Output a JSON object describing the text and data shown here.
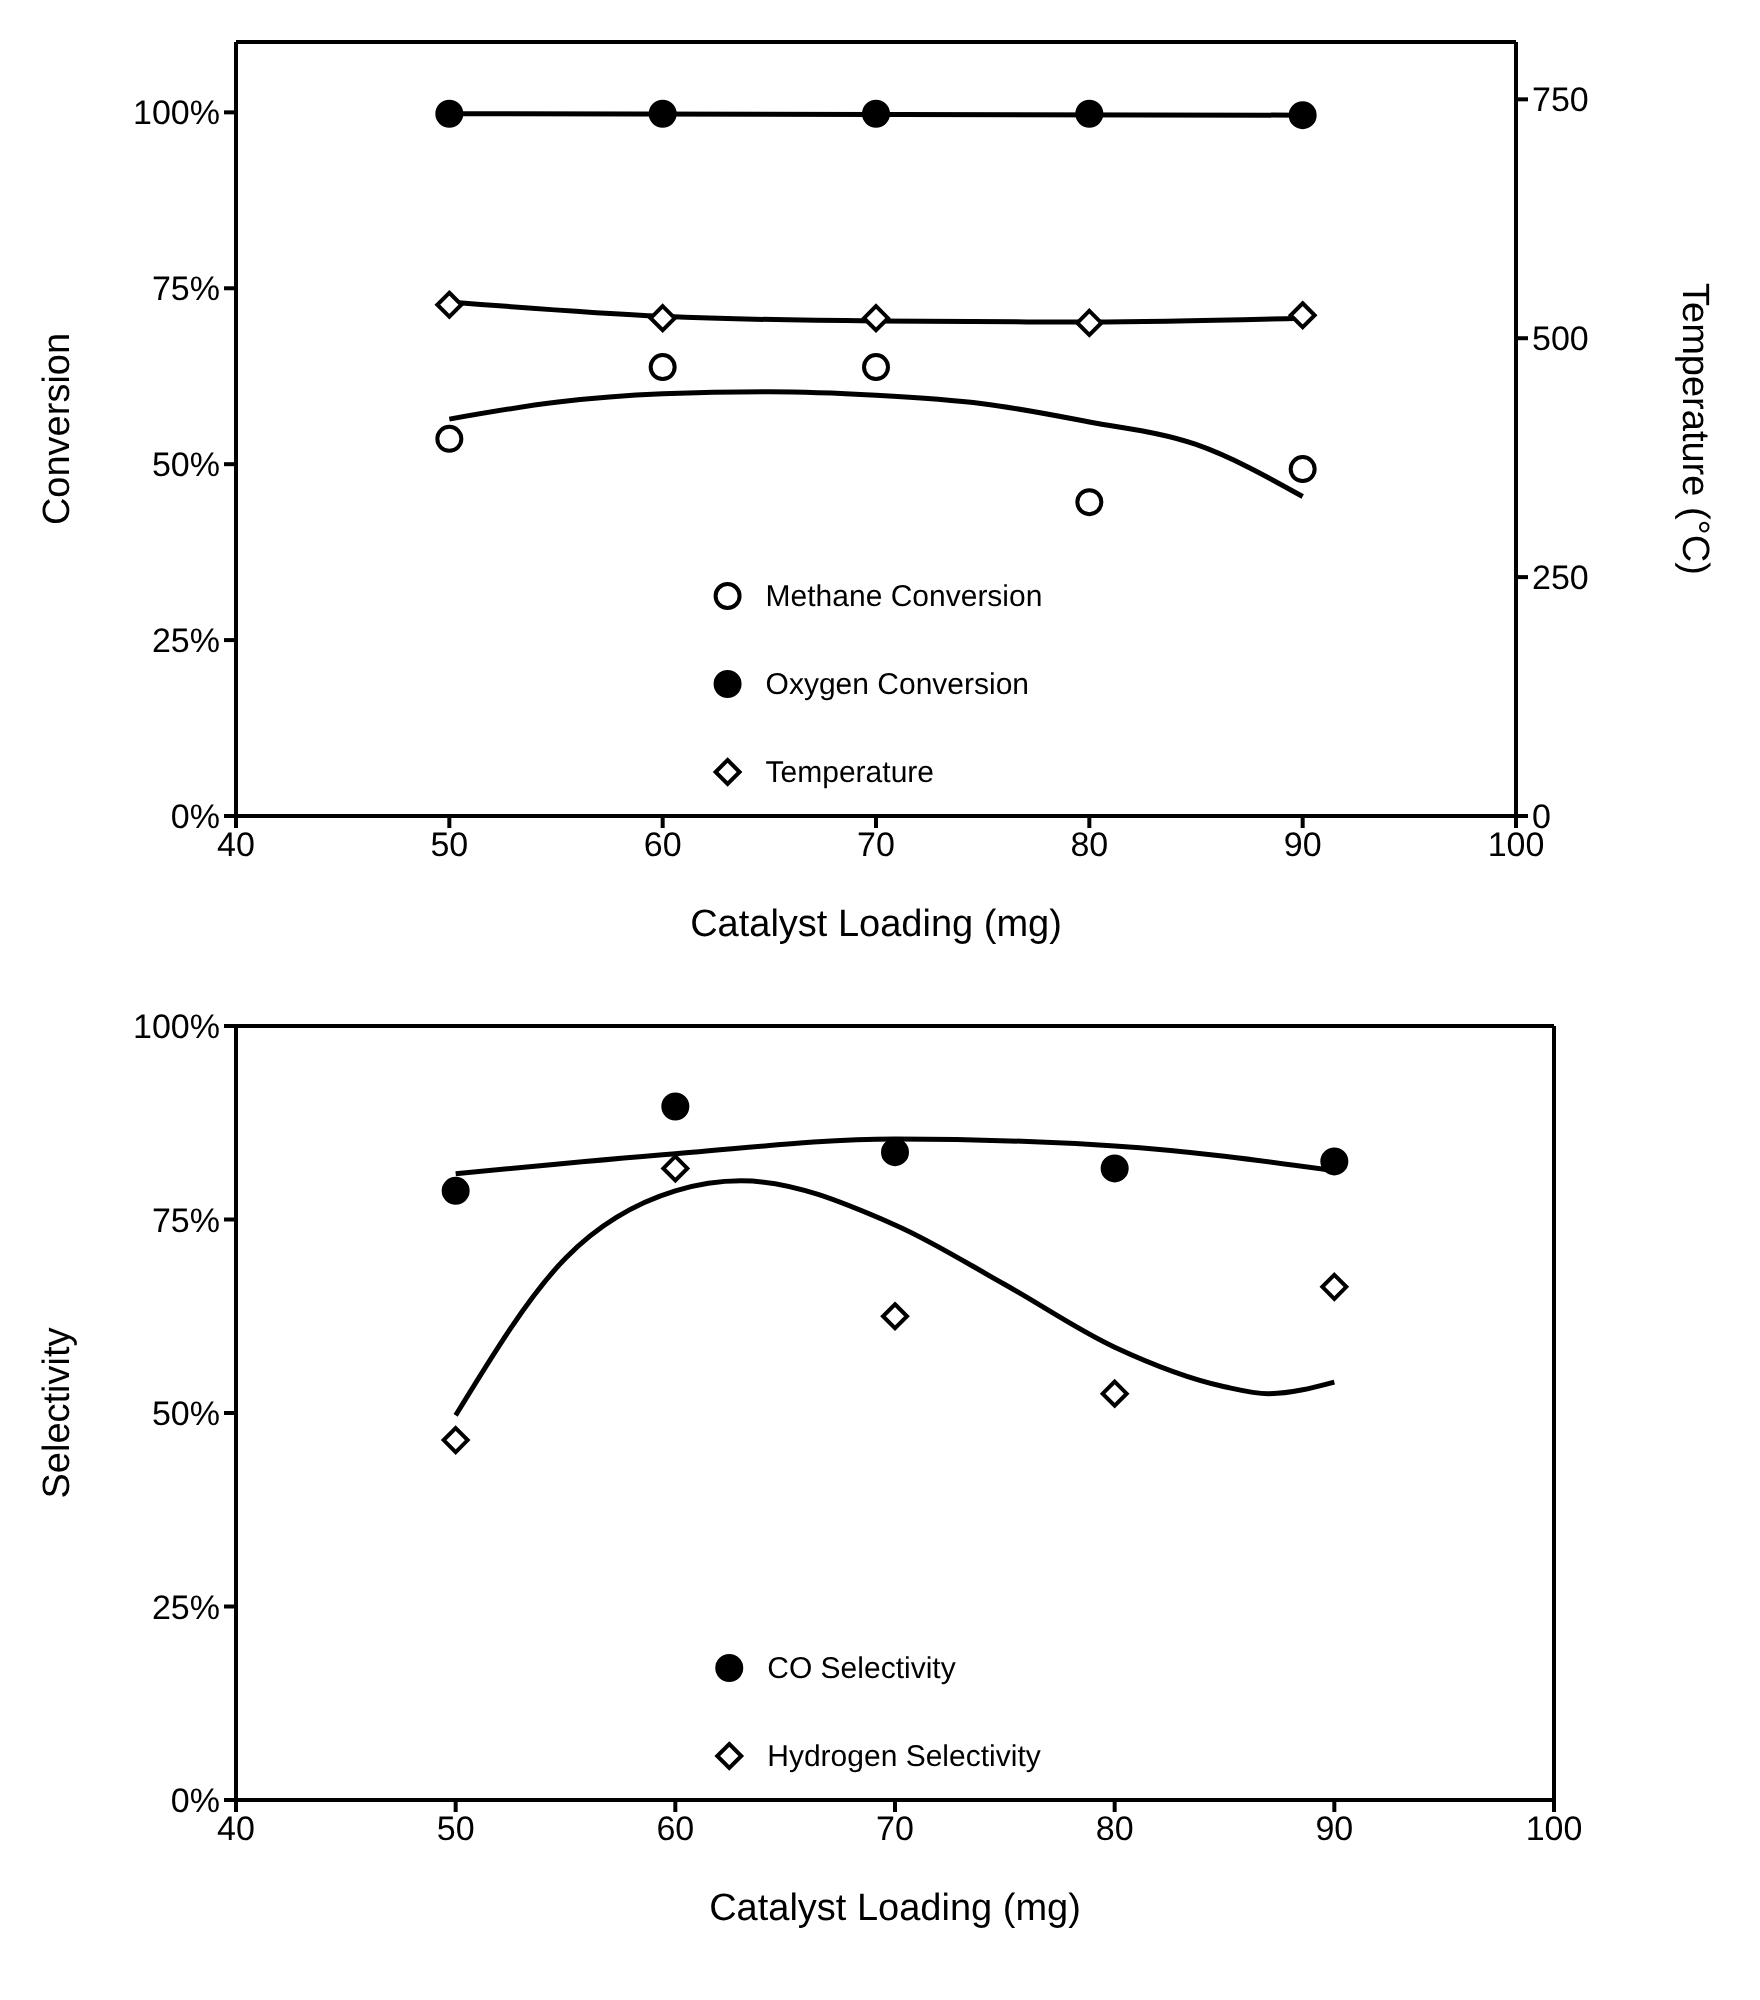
{
  "chart_data": [
    {
      "type": "scatter",
      "xlabel": "Catalyst Loading (mg)",
      "ylabel": "Conversion",
      "y2label": "Temperature (°C)",
      "xlim": [
        40,
        100
      ],
      "xticks": [
        40,
        50,
        60,
        70,
        80,
        90,
        100
      ],
      "ylim": [
        0,
        110
      ],
      "yticks": [
        {
          "value": 0,
          "label": "0%"
        },
        {
          "value": 25,
          "label": "25%"
        },
        {
          "value": 50,
          "label": "50%"
        },
        {
          "value": 75,
          "label": "75%"
        },
        {
          "value": 100,
          "label": "100%"
        }
      ],
      "y2lim": [
        0,
        810
      ],
      "y2ticks": [
        0,
        250,
        500,
        750
      ],
      "grid": false,
      "legend": "bottom",
      "series": [
        {
          "name": "Methane Conversion",
          "marker": "circle",
          "color": "#ffffff",
          "x": [
            50,
            60,
            70,
            80,
            90
          ],
          "values": [
            53.6,
            63.8,
            63.8,
            44.6,
            49.3
          ]
        },
        {
          "name": "Oxygen Conversion",
          "marker": "circle",
          "color": "#000000",
          "x": [
            50,
            60,
            70,
            80,
            90
          ],
          "values": [
            99.8,
            99.8,
            99.8,
            99.8,
            99.6
          ]
        },
        {
          "name": "Temperature",
          "marker": "diamond",
          "color": "#ffffff",
          "axis": "y2",
          "x": [
            50,
            60,
            70,
            80,
            90
          ],
          "values": [
            535,
            521,
            521,
            516,
            524
          ]
        },
        {
          "type": "line",
          "color": "#000000",
          "x": [
            50,
            55,
            60,
            65,
            70,
            75,
            80,
            85,
            90
          ],
          "values": [
            56.4,
            58.8,
            60,
            60.3,
            59.8,
            58.6,
            56,
            52.8,
            45.4
          ]
        },
        {
          "type": "line",
          "color": "#000000",
          "x": [
            50,
            70,
            90
          ],
          "values": [
            99.8,
            99.7,
            99.6
          ]
        },
        {
          "type": "line",
          "color": "#000000",
          "axis": "y2",
          "x": [
            50,
            60,
            70,
            80,
            90
          ],
          "values": [
            538,
            523,
            518,
            517,
            521
          ]
        }
      ]
    },
    {
      "type": "scatter",
      "xlabel": "Catalyst Loading (mg)",
      "ylabel": "Selectivity",
      "xlim": [
        40,
        100
      ],
      "xticks": [
        40,
        50,
        60,
        70,
        80,
        90,
        100
      ],
      "ylim": [
        0,
        100
      ],
      "yticks": [
        {
          "value": 0,
          "label": "0%"
        },
        {
          "value": 25,
          "label": "25%"
        },
        {
          "value": 50,
          "label": "50%"
        },
        {
          "value": 75,
          "label": "75%"
        },
        {
          "value": 100,
          "label": "100%"
        }
      ],
      "grid": false,
      "legend": "bottom",
      "series": [
        {
          "name": "CO Selectivity",
          "marker": "circle",
          "color": "#000000",
          "x": [
            50,
            60,
            70,
            80,
            90
          ],
          "values": [
            78.7,
            89.6,
            83.7,
            81.6,
            82.5
          ]
        },
        {
          "name": "Hydrogen Selectivity",
          "marker": "diamond",
          "color": "#ffffff",
          "x": [
            50,
            60,
            70,
            80,
            90
          ],
          "values": [
            46.5,
            81.6,
            62.5,
            52.5,
            66.3
          ]
        },
        {
          "type": "line",
          "color": "#000000",
          "x": [
            50,
            60,
            70,
            80,
            90
          ],
          "values": [
            80.9,
            83.5,
            85.4,
            84.5,
            81.3
          ]
        },
        {
          "type": "line",
          "color": "#000000",
          "x": [
            50,
            55,
            60,
            63,
            70,
            75,
            80,
            85,
            87,
            90
          ],
          "values": [
            49.7,
            70,
            78.7,
            80,
            74.3,
            66.6,
            58.5,
            53.4,
            52.5,
            54
          ]
        }
      ]
    }
  ]
}
